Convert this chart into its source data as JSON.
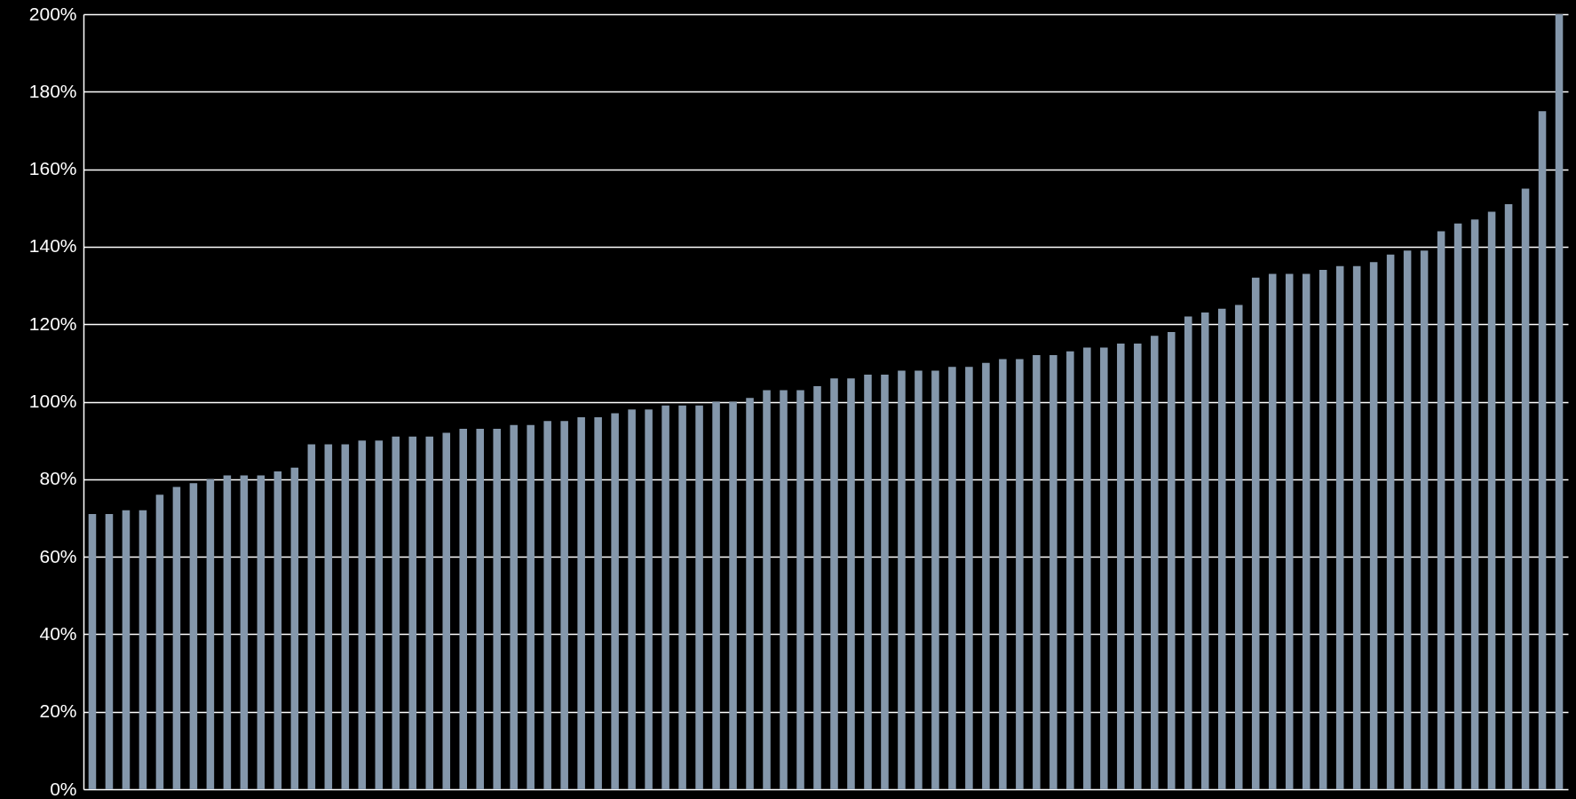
{
  "chart_data": {
    "type": "bar",
    "categories": [
      null,
      null,
      null,
      null,
      null,
      null,
      null,
      null,
      null,
      null,
      null,
      null,
      null,
      null,
      null,
      null,
      null,
      null,
      null,
      null,
      null,
      null,
      null,
      null,
      null,
      null,
      null,
      null,
      null,
      null,
      null,
      null,
      null,
      null,
      null,
      null,
      null,
      null,
      null,
      null,
      null,
      null,
      null,
      null,
      null,
      null,
      null,
      null,
      null,
      null,
      null,
      null,
      null,
      null,
      null,
      null,
      null,
      null,
      null,
      null,
      null,
      null,
      null,
      null,
      null,
      null,
      null,
      null,
      null,
      null,
      null,
      null,
      null,
      null,
      null,
      null,
      null,
      null,
      null,
      null,
      null,
      null,
      null,
      null,
      null,
      null,
      null,
      null
    ],
    "values": [
      71,
      71,
      72,
      72,
      76,
      78,
      79,
      80,
      81,
      81,
      81,
      82,
      83,
      89,
      89,
      89,
      90,
      90,
      91,
      91,
      91,
      92,
      93,
      93,
      93,
      94,
      94,
      95,
      95,
      96,
      96,
      97,
      98,
      98,
      99,
      99,
      99,
      100,
      100,
      101,
      103,
      103,
      103,
      104,
      106,
      106,
      107,
      107,
      108,
      108,
      108,
      109,
      109,
      110,
      111,
      111,
      112,
      112,
      113,
      114,
      114,
      115,
      115,
      117,
      118,
      122,
      123,
      124,
      125,
      132,
      133,
      133,
      133,
      134,
      135,
      135,
      136,
      138,
      139,
      139,
      144,
      146,
      147,
      149,
      151,
      155,
      175,
      200
    ],
    "color": "#8497ab",
    "ylim": [
      0,
      200
    ],
    "yticks": [
      {
        "value": 0,
        "label": "0%"
      },
      {
        "value": 20,
        "label": "20%"
      },
      {
        "value": 40,
        "label": "40%"
      },
      {
        "value": 60,
        "label": "60%"
      },
      {
        "value": 80,
        "label": "80%"
      },
      {
        "value": 100,
        "label": "100%"
      },
      {
        "value": 120,
        "label": "120%"
      },
      {
        "value": 140,
        "label": "140%"
      },
      {
        "value": 160,
        "label": "160%"
      },
      {
        "value": 180,
        "label": "180%"
      },
      {
        "value": 200,
        "label": "200%"
      }
    ],
    "grid": "y",
    "tick_labels": "y"
  }
}
